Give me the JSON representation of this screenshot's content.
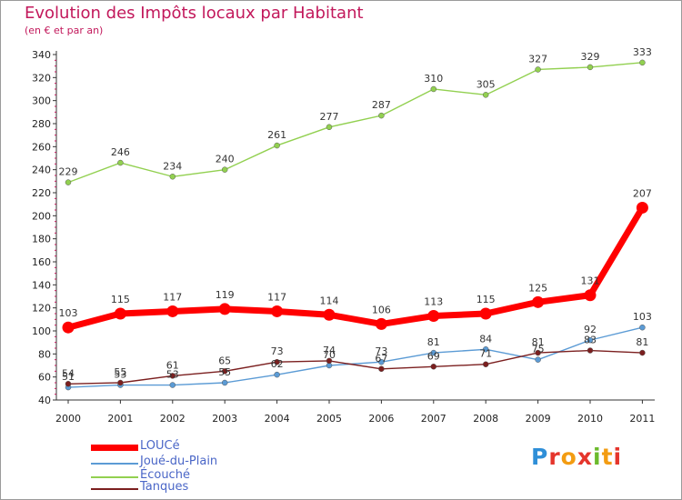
{
  "title": "Evolution des Impôts locaux par Habitant",
  "subtitle": "(en € et par an)",
  "logo_text": "Proxiti",
  "colors": {
    "loucé": "#ff0000",
    "joue": "#5b9bd5",
    "ecouche": "#92d050",
    "tanques": "#7b1f1f",
    "title": "#c2185b"
  },
  "chart_data": {
    "type": "line",
    "title": "Evolution des Impôts locaux par Habitant",
    "subtitle": "(en € et par an)",
    "xlabel": "",
    "ylabel": "",
    "ylim": [
      40,
      340
    ],
    "y_ticks": [
      40,
      60,
      80,
      100,
      120,
      140,
      160,
      180,
      200,
      220,
      240,
      260,
      280,
      300,
      320,
      340
    ],
    "grid": false,
    "legend": "bottom-left",
    "categories": [
      "2000",
      "2001",
      "2002",
      "2003",
      "2004",
      "2005",
      "2006",
      "2007",
      "2008",
      "2009",
      "2010",
      "2011"
    ],
    "series": [
      {
        "name": "Écouché",
        "key": "ecouche",
        "values": [
          229,
          246,
          234,
          240,
          261,
          277,
          287,
          310,
          305,
          327,
          329,
          333
        ]
      },
      {
        "name": "Joué-du-Plain",
        "key": "joue",
        "values": [
          51,
          53,
          53,
          55,
          62,
          70,
          73,
          81,
          84,
          75,
          92,
          103
        ]
      },
      {
        "name": "Tanques",
        "key": "tanques",
        "values": [
          54,
          55,
          61,
          65,
          73,
          74,
          67,
          69,
          71,
          81,
          83,
          81
        ]
      },
      {
        "name": "LOUCé",
        "key": "loucé",
        "values": [
          103,
          115,
          117,
          119,
          117,
          114,
          106,
          113,
          115,
          125,
          131,
          207
        ]
      }
    ]
  }
}
